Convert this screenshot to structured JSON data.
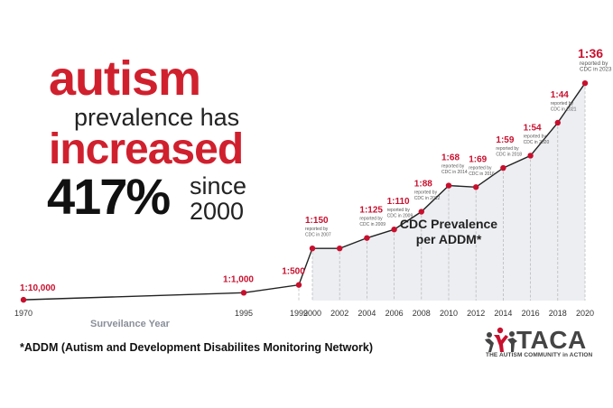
{
  "headline": {
    "line1": "autism",
    "line2": "prevalence has",
    "line3": "increased",
    "line4": "417%",
    "line5a": "since",
    "line5b": "2000"
  },
  "chart_data": {
    "type": "area",
    "title": "CDC Prevalence per ADDM*",
    "title_lines": [
      "CDC Prevalence",
      "per ADDM*"
    ],
    "xlabel": "Surveilance Year",
    "ylabel": "",
    "grid": false,
    "ylim": [
      0,
      0.0278
    ],
    "x_ticks": [
      1970,
      1995,
      1999,
      2000,
      2002,
      2004,
      2006,
      2008,
      2010,
      2012,
      2014,
      2016,
      2018,
      2020
    ],
    "points": [
      {
        "year": 1970,
        "label": "1:10,000",
        "note": "",
        "value": 0.0001
      },
      {
        "year": 1995,
        "label": "1:1,000",
        "note": "",
        "value": 0.001
      },
      {
        "year": 1999,
        "label": "1:500",
        "note": "",
        "value": 0.002
      },
      {
        "year": 2000,
        "label": "1:150",
        "note": "reported by|CDC in 2007",
        "value": 0.00667
      },
      {
        "year": 2002,
        "label": "",
        "note": "",
        "value": 0.00667
      },
      {
        "year": 2004,
        "label": "1:125",
        "note": "reported by|CDC in 2009",
        "value": 0.008
      },
      {
        "year": 2006,
        "label": "1:110",
        "note": "reported by|CDC in 2009",
        "value": 0.00909
      },
      {
        "year": 2008,
        "label": "1:88",
        "note": "reported by|CDC in 2012",
        "value": 0.01136
      },
      {
        "year": 2010,
        "label": "1:68",
        "note": "reported by|CDC in 2014",
        "value": 0.0147
      },
      {
        "year": 2012,
        "label": "1:69",
        "note": "reported by|CDC in 2016",
        "value": 0.0145
      },
      {
        "year": 2014,
        "label": "1:59",
        "note": "reported by|CDC in 2018",
        "value": 0.01695
      },
      {
        "year": 2016,
        "label": "1:54",
        "note": "reported by|CDC in 2020",
        "value": 0.01852
      },
      {
        "year": 2018,
        "label": "1:44",
        "note": "reported by|CDC in 2021",
        "value": 0.02273
      },
      {
        "year": 2020,
        "label": "1:36",
        "note": "reported by|CDC in 2023",
        "value": 0.02778
      }
    ],
    "colors": {
      "line": "#222222",
      "marker": "#c8102e",
      "label": "#c8102e",
      "fill": "#eceef2",
      "dash": "#bbbbbb"
    }
  },
  "footnote": "*ADDM (Autism and Development Disabilites Monitoring Network)",
  "logo": {
    "name": "TACA",
    "tagline": "THE AUTISM COMMUNITY in ACTION",
    "icon": "people-group-icon"
  }
}
